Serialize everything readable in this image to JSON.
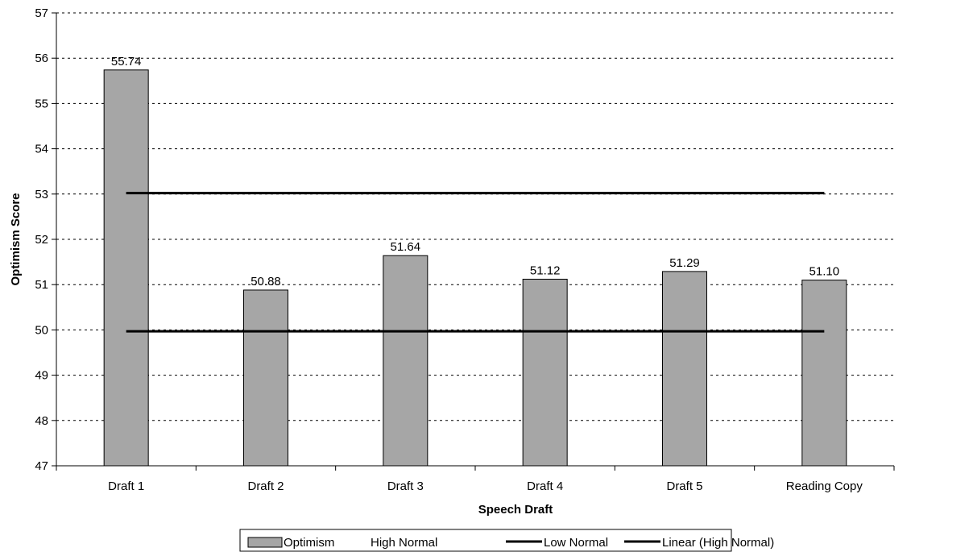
{
  "chart_data": {
    "type": "bar",
    "title": "",
    "xlabel": "Speech Draft",
    "ylabel": "Optimism Score",
    "categories": [
      "Draft 1",
      "Draft 2",
      "Draft 3",
      "Draft 4",
      "Draft 5",
      "Reading Copy"
    ],
    "ylim": [
      47,
      57
    ],
    "yticks": [
      47,
      48,
      49,
      50,
      51,
      52,
      53,
      54,
      55,
      56,
      57
    ],
    "grid": true,
    "legend_position": "bottom",
    "series": [
      {
        "name": "Optimism",
        "kind": "bar",
        "values": [
          55.74,
          50.88,
          51.64,
          51.12,
          51.29,
          51.1
        ],
        "data_labels": [
          "55.74",
          "50.88",
          "51.64",
          "51.12",
          "51.29",
          "51.10"
        ],
        "color": "#a6a6a6"
      },
      {
        "name": "High Normal",
        "kind": "line",
        "values": [
          53.02,
          53.02,
          53.02,
          53.02,
          53.02,
          53.02
        ],
        "color": "#000000"
      },
      {
        "name": "Low Normal",
        "kind": "line",
        "values": [
          49.97,
          49.97,
          49.97,
          49.97,
          49.97,
          49.97
        ],
        "color": "#000000"
      },
      {
        "name": "Linear (High Normal)",
        "kind": "trendline",
        "values": [
          53.02,
          53.02,
          53.02,
          53.02,
          53.02,
          53.02
        ],
        "color": "#000000"
      }
    ],
    "legend": [
      "Optimism",
      "High Normal",
      "Low Normal",
      "Linear (High Normal)"
    ]
  }
}
